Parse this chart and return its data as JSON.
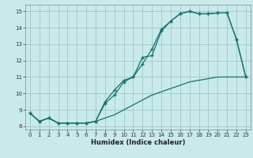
{
  "xlabel": "Humidex (Indice chaleur)",
  "background_color": "#c8eaea",
  "grid_color": "#a0c8c8",
  "line_color": "#1a7070",
  "xlim": [
    -0.5,
    23.5
  ],
  "ylim": [
    7.8,
    15.4
  ],
  "xticks": [
    0,
    1,
    2,
    3,
    4,
    5,
    6,
    7,
    8,
    9,
    10,
    11,
    12,
    13,
    14,
    15,
    16,
    17,
    18,
    19,
    20,
    21,
    22,
    23
  ],
  "yticks": [
    8,
    9,
    10,
    11,
    12,
    13,
    14,
    15
  ],
  "curve1_x": [
    0,
    1,
    2,
    3,
    4,
    5,
    6,
    7,
    8,
    9,
    10,
    11,
    12,
    13,
    14,
    15,
    16,
    17,
    18,
    19,
    20,
    21,
    22,
    23
  ],
  "curve1_y": [
    8.8,
    8.3,
    8.5,
    8.2,
    8.2,
    8.2,
    8.2,
    8.3,
    9.5,
    10.2,
    10.8,
    11.0,
    12.2,
    12.3,
    13.8,
    14.4,
    14.85,
    15.0,
    14.85,
    14.85,
    14.9,
    14.9,
    13.3,
    11.0
  ],
  "curve2_x": [
    0,
    1,
    2,
    3,
    4,
    5,
    6,
    7,
    8,
    9,
    10,
    11,
    12,
    13,
    14,
    15,
    16,
    17,
    18,
    19,
    20,
    21,
    22,
    23
  ],
  "curve2_y": [
    8.8,
    8.3,
    8.5,
    8.2,
    8.2,
    8.2,
    8.2,
    8.3,
    9.4,
    9.9,
    10.7,
    11.0,
    11.8,
    12.7,
    13.9,
    14.4,
    14.85,
    15.0,
    14.85,
    14.85,
    14.9,
    14.9,
    13.3,
    11.0
  ],
  "curve3_x": [
    0,
    1,
    2,
    3,
    4,
    5,
    6,
    7,
    8,
    9,
    10,
    11,
    12,
    13,
    14,
    15,
    16,
    17,
    18,
    19,
    20,
    21,
    22,
    23
  ],
  "curve3_y": [
    8.8,
    8.3,
    8.5,
    8.2,
    8.2,
    8.2,
    8.2,
    8.3,
    8.5,
    8.7,
    9.0,
    9.3,
    9.6,
    9.9,
    10.1,
    10.3,
    10.5,
    10.7,
    10.8,
    10.9,
    11.0,
    11.0,
    11.0,
    11.0
  ]
}
